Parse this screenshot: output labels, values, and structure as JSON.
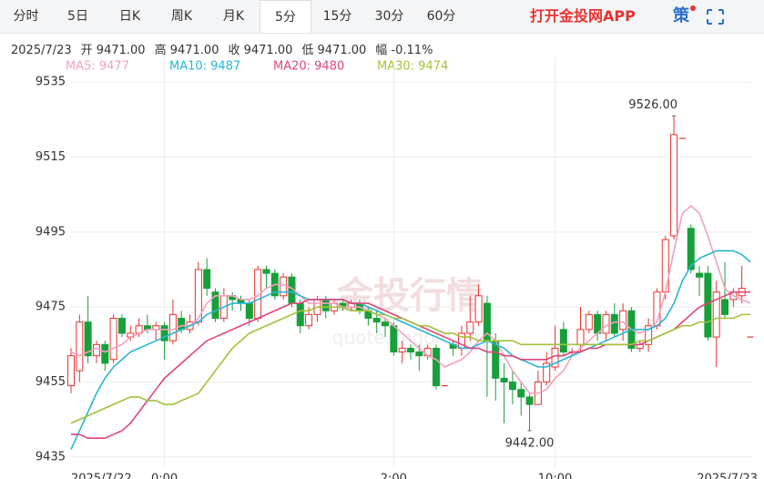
{
  "toolbar": {
    "tabs": [
      "分时",
      "5日",
      "日K",
      "周K",
      "月K",
      "5分",
      "15分",
      "30分",
      "60分"
    ],
    "active_tab": 5,
    "promo": "打开金投网APP",
    "icon": "策"
  },
  "quote": {
    "date": "2025/7/23",
    "items": [
      "开 9471.00",
      "高 9471.00",
      "收 9471.00",
      "低 9471.00",
      "幅 -0.11%"
    ]
  },
  "watermark": {
    "title": "金投行情",
    "url": "quote.cngold.org"
  },
  "chart_data": {
    "type": "candlestick",
    "categories": [
      "2025/7/22",
      null,
      null,
      null,
      null,
      null,
      null,
      null,
      null,
      null,
      null,
      "0:00",
      null,
      null,
      null,
      null,
      null,
      null,
      null,
      null,
      null,
      null,
      null,
      null,
      null,
      null,
      null,
      null,
      null,
      null,
      null,
      null,
      null,
      null,
      null,
      null,
      null,
      null,
      "2:00",
      null,
      null,
      null,
      null,
      null,
      null,
      null,
      null,
      null,
      null,
      null,
      null,
      null,
      null,
      null,
      null,
      null,
      null,
      "10:00",
      null,
      null,
      null,
      null,
      null,
      null,
      null,
      null,
      null,
      null,
      null,
      null,
      null,
      null,
      null,
      null,
      null,
      null,
      null,
      null,
      null,
      null,
      "2025/7/23"
    ],
    "ohlc": [
      [
        9454,
        9464,
        9452,
        9462
      ],
      [
        9458,
        9473,
        9455,
        9471
      ],
      [
        9471,
        9478,
        9460,
        9462
      ],
      [
        9462,
        9466,
        9460,
        9465
      ],
      [
        9465,
        9466,
        9458,
        9460
      ],
      [
        9461,
        9473,
        9460,
        9472
      ],
      [
        9472,
        9473,
        9467,
        9468
      ],
      [
        9467,
        9470,
        9466,
        9468
      ],
      [
        9468,
        9472,
        9467,
        9470
      ],
      [
        9470,
        9473,
        9468,
        9469
      ],
      [
        9469,
        9471,
        9466,
        9470
      ],
      [
        9470,
        9471,
        9461,
        9466
      ],
      [
        9466,
        9477,
        9465,
        9473
      ],
      [
        9472,
        9474,
        9468,
        9469
      ],
      [
        9469,
        9473,
        9468,
        9471
      ],
      [
        9471,
        9487,
        9470,
        9485
      ],
      [
        9485,
        9488,
        9478,
        9480
      ],
      [
        9479,
        9480,
        9471,
        9472
      ],
      [
        9472,
        9480,
        9471,
        9478
      ],
      [
        9478,
        9479,
        9474,
        9477
      ],
      [
        9477,
        9478,
        9474,
        9476
      ],
      [
        9476,
        9477,
        9470,
        9472
      ],
      [
        9472,
        9486,
        9471,
        9485
      ],
      [
        9485,
        9486,
        9480,
        9484
      ],
      [
        9484,
        9485,
        9477,
        9478
      ],
      [
        9478,
        9484,
        9477,
        9483
      ],
      [
        9483,
        9484,
        9475,
        9476
      ],
      [
        9476,
        9477,
        9468,
        9470
      ],
      [
        9470,
        9475,
        9469,
        9473
      ],
      [
        9473,
        9478,
        9471,
        9477
      ],
      [
        9477,
        9478,
        9472,
        9474
      ],
      [
        9474,
        9477,
        9473,
        9476
      ],
      [
        9476,
        9477,
        9474,
        9475
      ],
      [
        9475,
        9477,
        9474,
        9476
      ],
      [
        9476,
        9477,
        9473,
        9474
      ],
      [
        9474,
        9475,
        9470,
        9472
      ],
      [
        9472,
        9474,
        9468,
        9471
      ],
      [
        9471,
        9472,
        9467,
        9470
      ],
      [
        9470,
        9471,
        9462,
        9463
      ],
      [
        9463,
        9466,
        9460,
        9464
      ],
      [
        9464,
        9465,
        9461,
        9463
      ],
      [
        9463,
        9465,
        9458,
        9462
      ],
      [
        9462,
        9465,
        9461,
        9464
      ],
      [
        9464,
        9465,
        9453,
        9454
      ],
      [
        9454,
        9454,
        9454,
        9454
      ],
      [
        9465,
        9466,
        9462,
        9464
      ],
      [
        9464,
        9470,
        9462,
        9468
      ],
      [
        9468,
        9478,
        9466,
        9471
      ],
      [
        9471,
        9481,
        9470,
        9478
      ],
      [
        9476,
        9478,
        9451,
        9466
      ],
      [
        9466,
        9468,
        9450,
        9456
      ],
      [
        9456,
        9460,
        9444,
        9455
      ],
      [
        9455,
        9458,
        9449,
        9453
      ],
      [
        9453,
        9455,
        9446,
        9451
      ],
      [
        9451,
        9452,
        9442,
        9449
      ],
      [
        9449,
        9458,
        9449,
        9455
      ],
      [
        9455,
        9463,
        9454,
        9460
      ],
      [
        9459,
        9470,
        9458,
        9464
      ],
      [
        9469,
        9471,
        9462,
        9463
      ],
      [
        9463,
        9464,
        9462,
        9463
      ],
      [
        9465,
        9475,
        9463,
        9469
      ],
      [
        9469,
        9474,
        9468,
        9473
      ],
      [
        9473,
        9474,
        9466,
        9468
      ],
      [
        9468,
        9474,
        9466,
        9473
      ],
      [
        9473,
        9476,
        9467,
        9468
      ],
      [
        9469,
        9476,
        9466,
        9474
      ],
      [
        9474,
        9475,
        9463,
        9464
      ],
      [
        9464,
        9466,
        9463,
        9465
      ],
      [
        9465,
        9472,
        9463,
        9470
      ],
      [
        9470,
        9480,
        9469,
        9479
      ],
      [
        9479,
        9494,
        9477,
        9493
      ],
      [
        9494,
        9526,
        9493,
        9521
      ],
      [
        9520,
        9520,
        9520,
        9520
      ],
      [
        9496,
        9497,
        9484,
        9485
      ],
      [
        9484,
        9486,
        9478,
        9483
      ],
      [
        9484,
        9486,
        9466,
        9467
      ],
      [
        9467,
        9482,
        9459,
        9479
      ],
      [
        9477,
        9487,
        9472,
        9473
      ],
      [
        9477,
        9480,
        9475,
        9479
      ],
      [
        9478,
        9486,
        9476,
        9480
      ],
      [
        9467,
        9467,
        9467,
        9467
      ]
    ],
    "up_color": "#e8322f",
    "down_color": "#17a03a",
    "series": [
      {
        "name": "MA5: 9477",
        "color": "#f3a0bd",
        "values": [
          9463,
          9462,
          9463,
          9464,
          9463,
          9464,
          9465,
          9467,
          9468,
          9469,
          9469,
          9469,
          9469,
          9470,
          9470,
          9472,
          9476,
          9478,
          9478,
          9478,
          9477,
          9477,
          9478,
          9480,
          9481,
          9481,
          9480,
          9478,
          9476,
          9476,
          9476,
          9476,
          9475,
          9475,
          9475,
          9474,
          9473,
          9472,
          9470,
          9468,
          9466,
          9464,
          9462,
          9461,
          9459,
          9460,
          9461,
          9463,
          9466,
          9468,
          9466,
          9462,
          9458,
          9455,
          9452,
          9452,
          9453,
          9456,
          9458,
          9462,
          9464,
          9466,
          9468,
          9470,
          9471,
          9471,
          9469,
          9468,
          9469,
          9471,
          9479,
          9490,
          9500,
          9502,
          9500,
          9494,
          9487,
          9480,
          9478,
          9477,
          9476
        ]
      },
      {
        "name": "MA10: 9487",
        "color": "#27b5d6",
        "values": [
          9437,
          9442,
          9447,
          9452,
          9456,
          9459,
          9461,
          9463,
          9464,
          9465,
          9466,
          9467,
          9468,
          9469,
          9470,
          9471,
          9473,
          9474,
          9475,
          9476,
          9476,
          9476,
          9477,
          9478,
          9479,
          9479,
          9479,
          9478,
          9477,
          9477,
          9477,
          9477,
          9477,
          9476,
          9476,
          9475,
          9474,
          9473,
          9472,
          9471,
          9470,
          9469,
          9468,
          9467,
          9466,
          9465,
          9464,
          9464,
          9465,
          9466,
          9465,
          9464,
          9462,
          9461,
          9460,
          9459,
          9459,
          9460,
          9461,
          9462,
          9463,
          9464,
          9465,
          9466,
          9467,
          9468,
          9469,
          9469,
          9469,
          9470,
          9472,
          9476,
          9482,
          9486,
          9488,
          9489,
          9490,
          9490,
          9490,
          9489,
          9487
        ]
      },
      {
        "name": "MA20: 9480",
        "color": "#e2447a",
        "values": [
          9441,
          9441,
          9440,
          9440,
          9440,
          9441,
          9442,
          9444,
          9447,
          9450,
          9453,
          9456,
          9458,
          9460,
          9462,
          9464,
          9466,
          9467,
          9468,
          9469,
          9470,
          9471,
          9472,
          9473,
          9474,
          9475,
          9476,
          9476,
          9477,
          9477,
          9477,
          9477,
          9477,
          9476,
          9476,
          9476,
          9475,
          9474,
          9473,
          9472,
          9471,
          9470,
          9469,
          9468,
          9467,
          9466,
          9465,
          9464,
          9464,
          9463,
          9463,
          9462,
          9462,
          9461,
          9461,
          9461,
          9461,
          9462,
          9462,
          9463,
          9463,
          9464,
          9464,
          9465,
          9465,
          9465,
          9465,
          9465,
          9466,
          9467,
          9468,
          9469,
          9471,
          9473,
          9475,
          9476,
          9477,
          9478,
          9479,
          9479,
          9479
        ]
      },
      {
        "name": "MA30: 9474",
        "color": "#a2c23a",
        "values": [
          9444,
          9445,
          9446,
          9447,
          9448,
          9449,
          9450,
          9451,
          9451,
          9450,
          9450,
          9449,
          9449,
          9450,
          9451,
          9452,
          9455,
          9458,
          9461,
          9464,
          9466,
          9468,
          9469,
          9470,
          9471,
          9472,
          9473,
          9474,
          9474,
          9475,
          9475,
          9475,
          9475,
          9474,
          9474,
          9474,
          9473,
          9473,
          9472,
          9472,
          9471,
          9470,
          9470,
          9469,
          9468,
          9468,
          9467,
          9467,
          9466,
          9466,
          9466,
          9466,
          9466,
          9465,
          9465,
          9465,
          9465,
          9465,
          9465,
          9465,
          9465,
          9465,
          9465,
          9465,
          9465,
          9465,
          9465,
          9466,
          9466,
          9467,
          9468,
          9469,
          9470,
          9470,
          9471,
          9471,
          9472,
          9472,
          9472,
          9473,
          9473
        ]
      }
    ],
    "annotations": [
      {
        "index": 71,
        "value": 9526,
        "label": "9526.00",
        "position": "above"
      },
      {
        "index": 54,
        "value": 9442,
        "label": "9442.00",
        "position": "below"
      }
    ],
    "ylim": [
      9433,
      9537
    ],
    "yticks": [
      9435,
      9455,
      9475,
      9495,
      9515,
      9535
    ],
    "grid": true
  }
}
